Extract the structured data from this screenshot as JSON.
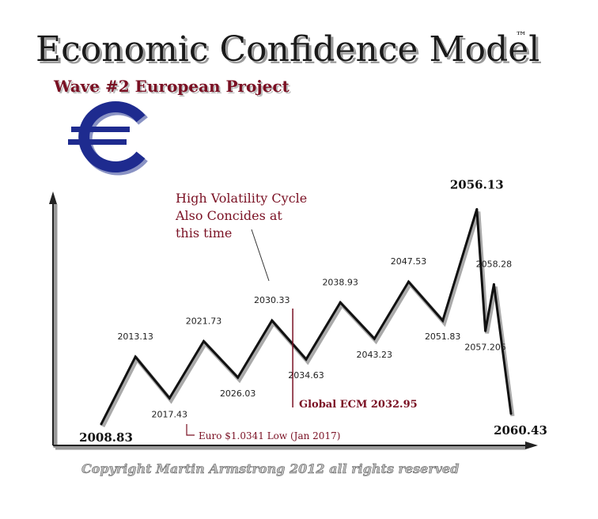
{
  "header": {
    "title": "Economic Confidence Model",
    "trademark": "™",
    "subtitle": "Wave #2 European Project"
  },
  "colors": {
    "accent": "#7a1023",
    "euro_symbol": "#1e2b8f",
    "line": "#111111"
  },
  "icons": {
    "euro": "euro-icon"
  },
  "annotations": {
    "volatility_line1": "High Volatility Cycle",
    "volatility_line2": "Also Concides at",
    "volatility_line3": "this time",
    "global_ecm": "Global ECM 2032.95",
    "euro_low": "Euro $1.0341 Low (Jan 2017)"
  },
  "copyright": "Copyright Martin Armstrong 2012 all rights reserved",
  "chart_data": {
    "type": "line",
    "x": [
      2008.83,
      2013.13,
      2017.43,
      2021.73,
      2026.03,
      2030.33,
      2034.63,
      2038.93,
      2043.23,
      2047.53,
      2051.83,
      2056.13,
      2057.205,
      2058.28,
      2060.43
    ],
    "labels": [
      "2008.83",
      "2013.13",
      "2017.43",
      "2021.73",
      "2026.03",
      "2030.33",
      "2034.63",
      "2038.93",
      "2043.23",
      "2047.53",
      "2051.83",
      "2056.13",
      "2057.205",
      "2058.28",
      "2060.43"
    ],
    "y": [
      0,
      26,
      10,
      32,
      18,
      40,
      25,
      47,
      33,
      55,
      40,
      83,
      36,
      54,
      4
    ],
    "ylim": [
      0,
      85
    ],
    "grid": false,
    "global_ecm_x": 2032.95
  }
}
